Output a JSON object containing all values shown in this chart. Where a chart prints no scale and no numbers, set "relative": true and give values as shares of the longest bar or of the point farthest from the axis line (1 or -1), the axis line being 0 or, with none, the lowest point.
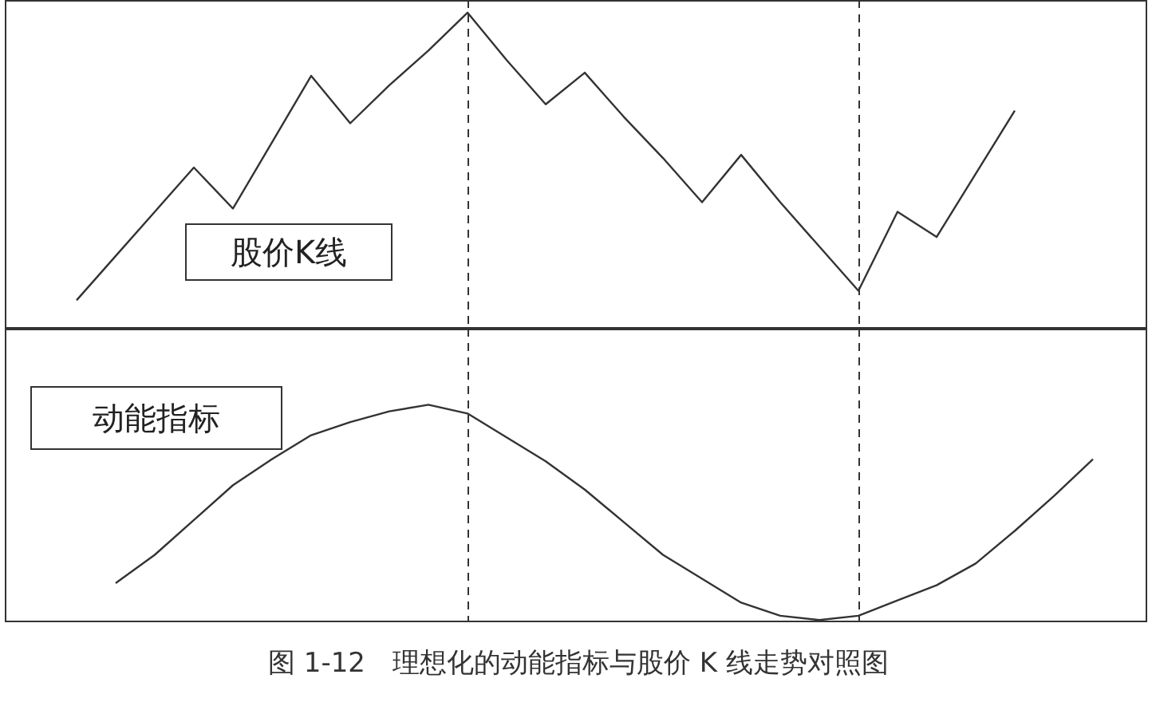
{
  "chart_data": [
    {
      "type": "line",
      "relative": true,
      "tick_labels": false,
      "categories": [
        null,
        null,
        null,
        null,
        null,
        null,
        null,
        null,
        null,
        null,
        null,
        null,
        null,
        null,
        null,
        null,
        null,
        null,
        null,
        null,
        null,
        null,
        null,
        null,
        null
      ],
      "series": [
        {
          "color": "#333333",
          "values": [
            0.09,
            0.23,
            0.37,
            0.51,
            0.38,
            0.59,
            0.8,
            0.65,
            0.77,
            0.88,
            1,
            0.85,
            0.71,
            0.81,
            0.67,
            0.54,
            0.4,
            0.55,
            0.4,
            0.26,
            0.12,
            0.37,
            0.29,
            0.49,
            0.69
          ]
        }
      ],
      "annotations": [
        "股价K线"
      ]
    },
    {
      "type": "line",
      "relative": true,
      "tick_labels": false,
      "categories": [
        null,
        null,
        null,
        null,
        null,
        null,
        null,
        null,
        null,
        null,
        null,
        null,
        null,
        null,
        null,
        null,
        null,
        null,
        null,
        null,
        null,
        null,
        null,
        null,
        null,
        null
      ],
      "series": [
        {
          "color": "#333333",
          "values": [
            0.18,
            0.31,
            0.47,
            0.63,
            0.75,
            0.86,
            0.92,
            0.97,
            1,
            0.96,
            0.85,
            0.74,
            0.61,
            0.46,
            0.31,
            0.2,
            0.09,
            0.03,
            0.01,
            0.03,
            0.1,
            0.17,
            0.27,
            0.42,
            0.58,
            0.75
          ]
        }
      ],
      "annotations": [
        "动能指标",
        "图 1-12　理想化的动能指标与股价 K 线走势对照图"
      ]
    }
  ]
}
